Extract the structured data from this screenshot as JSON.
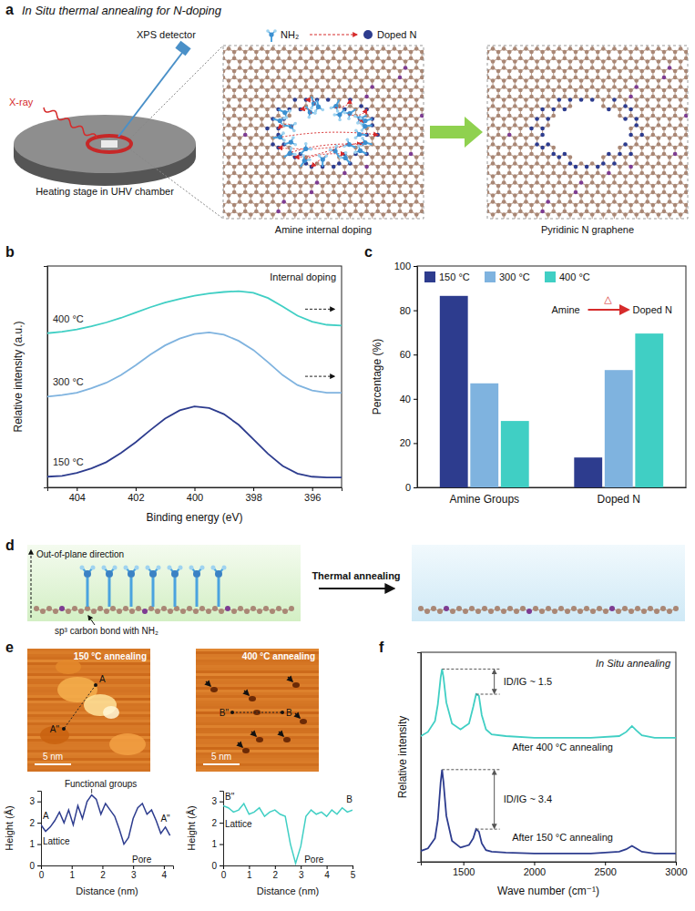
{
  "panel_labels": [
    "a",
    "b",
    "c",
    "d",
    "e",
    "f"
  ],
  "diagram_a": {
    "title": "In Situ thermal annealing for N-doping",
    "xray": "X-ray",
    "detector": "XPS detector",
    "stage": "Heating stage in UHV chamber",
    "legend_from": "NH₂",
    "legend_to": "Doped N",
    "caption_left": "Amine internal doping",
    "caption_right": "Pyridinic N graphene"
  },
  "diagram_d": {
    "axis_label": "Out-of-plane direction",
    "bond_label": "sp³ carbon bond with NH₂",
    "arrow_label": "Thermal annealing"
  },
  "afm_images": [
    {
      "title": "150 °C annealing",
      "scale_bar": "5 nm",
      "start": "A",
      "end": "A\""
    },
    {
      "title": "400 °C annealing",
      "scale_bar": "5 nm",
      "start": "B\"",
      "end": "B"
    }
  ],
  "chart_data": [
    {
      "type": "line",
      "title": "Internal doping",
      "x_label": "Binding energy (eV)",
      "y_label": "Relative intensity (a.u.)",
      "x": [
        405,
        404.5,
        404,
        403.5,
        403,
        402.5,
        402,
        401.5,
        401,
        400.5,
        400,
        399.5,
        399,
        398.5,
        398,
        397.5,
        397,
        396.5,
        396,
        395.5,
        395
      ],
      "xlim": [
        405,
        395
      ],
      "xticks": [
        404,
        402,
        400,
        398,
        396
      ],
      "ylim": [
        0,
        2.9
      ],
      "tick_labels": "x",
      "series": [
        {
          "name": "150 °C",
          "color": "#2d3c8e",
          "values": [
            0.14,
            0.15,
            0.19,
            0.25,
            0.33,
            0.45,
            0.59,
            0.75,
            0.9,
            1.01,
            1.06,
            1.04,
            0.96,
            0.82,
            0.63,
            0.44,
            0.28,
            0.18,
            0.14,
            0.13,
            0.13
          ]
        },
        {
          "name": "300 °C",
          "color": "#7fb3df",
          "values": [
            1.19,
            1.21,
            1.24,
            1.3,
            1.37,
            1.47,
            1.6,
            1.74,
            1.86,
            1.95,
            2.01,
            2.03,
            2,
            1.92,
            1.8,
            1.64,
            1.47,
            1.34,
            1.27,
            1.24,
            1.24
          ]
        },
        {
          "name": "400 °C",
          "color": "#40cfc4",
          "values": [
            2.02,
            2.04,
            2.07,
            2.11,
            2.16,
            2.22,
            2.29,
            2.36,
            2.42,
            2.47,
            2.51,
            2.54,
            2.56,
            2.57,
            2.55,
            2.48,
            2.37,
            2.25,
            2.17,
            2.13,
            2.12
          ]
        }
      ]
    },
    {
      "type": "bar",
      "categories": [
        "Amine Groups",
        "Doped N"
      ],
      "y_label": "Percentage (%)",
      "ylim": [
        0,
        100
      ],
      "yticks": [
        0,
        20,
        40,
        60,
        80,
        100
      ],
      "legend": "top-left",
      "series": [
        {
          "name": "150 °C",
          "color": "#2d3c8e",
          "values": [
            86.5,
            13.5
          ]
        },
        {
          "name": "300 °C",
          "color": "#7fb3df",
          "values": [
            47,
            53
          ]
        },
        {
          "name": "400 °C",
          "color": "#40cfc4",
          "values": [
            30,
            69.5
          ]
        }
      ],
      "annotation": {
        "from": "Amine",
        "to": "Doped N",
        "symbol": "△"
      }
    },
    {
      "type": "line",
      "x_label": "Distance (nm)",
      "y_label": "Height (Å)",
      "x": [
        0,
        0.15,
        0.3,
        0.45,
        0.6,
        0.75,
        0.9,
        1.05,
        1.2,
        1.35,
        1.5,
        1.65,
        1.8,
        1.95,
        2.1,
        2.25,
        2.4,
        2.55,
        2.7,
        2.85,
        3,
        3.15,
        3.3,
        3.45,
        3.6,
        3.75,
        3.9,
        4.05,
        4.2
      ],
      "xlim": [
        0,
        4.3
      ],
      "xticks": [
        0,
        1,
        2,
        3,
        4
      ],
      "ylim": [
        0,
        3.5
      ],
      "yticks": [
        0,
        1,
        2,
        3
      ],
      "series": [
        {
          "color": "#2d3c8e",
          "values": [
            1.9,
            1.6,
            1.8,
            2.1,
            2.5,
            2.0,
            2.6,
            1.9,
            2.8,
            2.2,
            3.0,
            3.3,
            3.1,
            2.4,
            2.9,
            2.6,
            2.3,
            1.7,
            1.0,
            1.3,
            2.2,
            2.7,
            2.9,
            2.4,
            2.6,
            2.1,
            1.5,
            1.8,
            1.4
          ]
        }
      ],
      "annotations": [
        "A",
        "A\"",
        "Lattice",
        "Functional groups",
        "Pore"
      ]
    },
    {
      "type": "line",
      "x_label": "Distance (nm)",
      "y_label": "Height (Å)",
      "x": [
        0,
        0.2,
        0.4,
        0.6,
        0.8,
        1,
        1.2,
        1.4,
        1.6,
        1.8,
        2,
        2.2,
        2.4,
        2.6,
        2.8,
        3,
        3.2,
        3.4,
        3.6,
        3.8,
        4,
        4.2,
        4.4,
        4.6,
        4.8,
        5
      ],
      "xlim": [
        0,
        5
      ],
      "xticks": [
        0,
        1,
        2,
        3,
        4,
        5
      ],
      "ylim": [
        0,
        3.5
      ],
      "yticks": [
        0,
        1,
        2,
        3
      ],
      "series": [
        {
          "color": "#40cfc4",
          "values": [
            2.8,
            2.7,
            2.5,
            2.6,
            2.9,
            2.4,
            2.5,
            2.7,
            2.3,
            2.5,
            2.6,
            2.4,
            2.3,
            1.0,
            0.1,
            0.9,
            2.3,
            2.6,
            2.4,
            2.5,
            2.3,
            2.6,
            2.4,
            2.7,
            2.5,
            2.6
          ]
        }
      ],
      "annotations": [
        "B\"",
        "B",
        "Lattice",
        "Pore"
      ]
    },
    {
      "type": "line",
      "title": "In Situ annealing",
      "x_label": "Wave number (cm⁻¹)",
      "y_label": "Relative intensity",
      "x": [
        1200,
        1250,
        1300,
        1320,
        1340,
        1350,
        1360,
        1380,
        1420,
        1480,
        1540,
        1570,
        1590,
        1610,
        1630,
        1660,
        1700,
        1800,
        2000,
        2200,
        2400,
        2600,
        2650,
        2690,
        2720,
        2760,
        2850,
        3000
      ],
      "xlim": [
        1200,
        3000
      ],
      "xticks": [
        1500,
        2000,
        2500,
        3000
      ],
      "ylim": [
        0,
        2.5
      ],
      "tick_labels": "x",
      "series": [
        {
          "name": "After 400 °C annealing",
          "color": "#40cfc4",
          "values": [
            1.5,
            1.55,
            1.68,
            1.88,
            2.2,
            2.3,
            2.2,
            1.9,
            1.65,
            1.58,
            1.65,
            1.85,
            2.0,
            1.98,
            1.75,
            1.58,
            1.52,
            1.5,
            1.48,
            1.48,
            1.48,
            1.5,
            1.55,
            1.62,
            1.57,
            1.51,
            1.48,
            1.48
          ]
        },
        {
          "name": "After 150 °C annealing",
          "color": "#2d3c8e",
          "values": [
            0.13,
            0.16,
            0.28,
            0.5,
            0.95,
            1.1,
            0.95,
            0.55,
            0.25,
            0.17,
            0.2,
            0.28,
            0.39,
            0.36,
            0.22,
            0.14,
            0.12,
            0.11,
            0.1,
            0.1,
            0.1,
            0.12,
            0.15,
            0.19,
            0.16,
            0.12,
            0.1,
            0.1
          ]
        }
      ],
      "ratio_labels": [
        "ID/IG ~ 1.5",
        "ID/IG ~ 3.4"
      ]
    }
  ]
}
